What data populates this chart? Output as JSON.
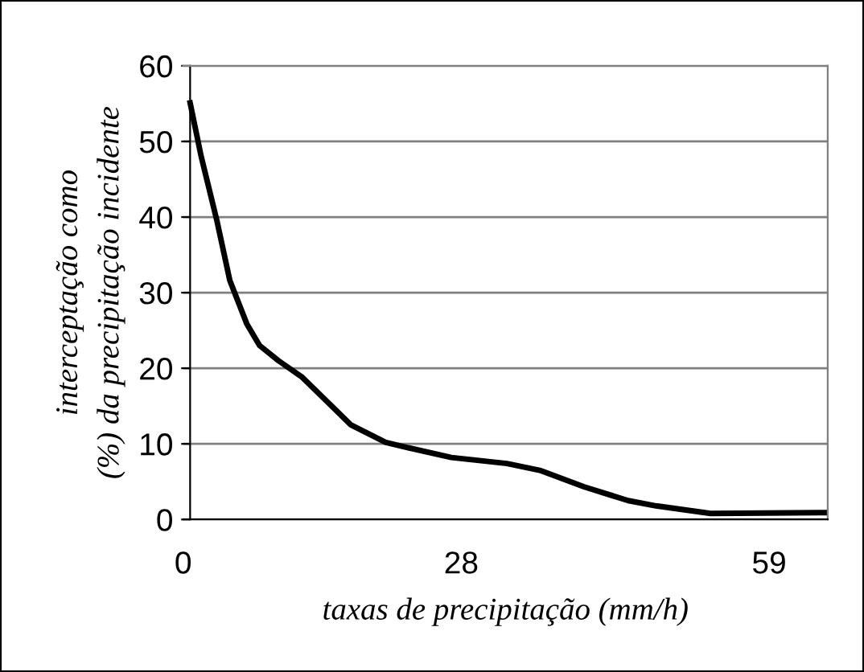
{
  "chart_data": {
    "type": "line",
    "xlabel": "taxas de precipitação (mm/h)",
    "ylabel": "interceptação como\n(%) da precipitação incidente",
    "series": [
      {
        "color": "#000000",
        "x": [
          0.7,
          1.8,
          3.4,
          4.7,
          6.4,
          7.7,
          9.6,
          12.0,
          16.9,
          20.4,
          22.6,
          27.0,
          32.6,
          35.9,
          40.4,
          44.8,
          47.6,
          53.1,
          64.9
        ],
        "values": [
          55.1,
          48.1,
          39.5,
          31.6,
          25.9,
          23.0,
          21.0,
          18.8,
          12.5,
          10.2,
          9.5,
          8.2,
          7.4,
          6.5,
          4.3,
          2.5,
          1.8,
          0.8,
          0.9
        ]
      }
    ],
    "xlim": [
      0,
      64.9
    ],
    "xticks": [
      0,
      28,
      59
    ],
    "ylim": [
      0,
      60
    ],
    "yticks": [
      0,
      10,
      20,
      30,
      40,
      50,
      60
    ],
    "grid": "y",
    "marker": "none",
    "line_style": "solid",
    "legend": false
  }
}
